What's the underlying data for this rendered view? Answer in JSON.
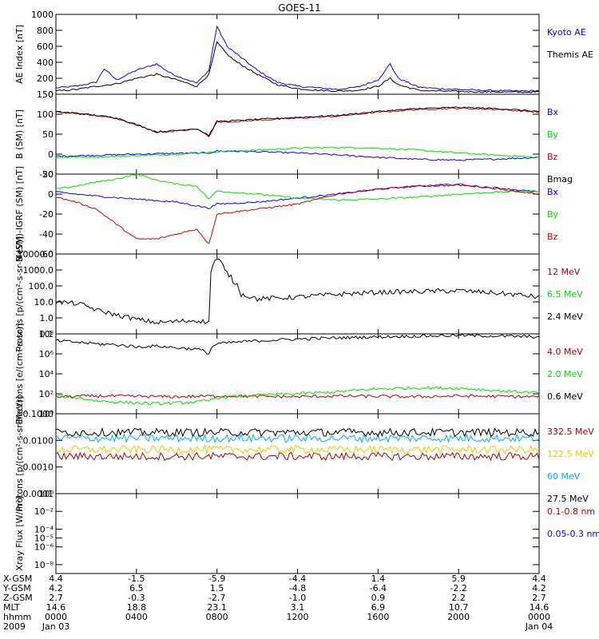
{
  "title": "GOES-11",
  "chart_data": [
    {
      "type": "line",
      "ylabel": "AE Index [nT]",
      "yscale": "linear",
      "ylim": [
        0,
        1000
      ],
      "yticks": [
        {
          "v": 0,
          "label": "0"
        },
        {
          "v": 200,
          "label": "200"
        },
        {
          "v": 400,
          "label": "400"
        },
        {
          "v": 600,
          "label": "600"
        },
        {
          "v": 800,
          "label": "800"
        },
        {
          "v": 1000,
          "label": "1000"
        }
      ],
      "series": [
        {
          "name": "Kyoto AE",
          "color": "#0000ff",
          "x": [
            0,
            1,
            2,
            2.4,
            3,
            4,
            5,
            5.6,
            6,
            7,
            7.6,
            8,
            8.5,
            9,
            10,
            11,
            12,
            13,
            14,
            15,
            16,
            16.6,
            17,
            18,
            19,
            20,
            21,
            22,
            23,
            24
          ],
          "y": [
            80,
            100,
            150,
            320,
            180,
            300,
            380,
            280,
            230,
            140,
            300,
            850,
            600,
            500,
            300,
            150,
            100,
            80,
            60,
            90,
            180,
            380,
            200,
            90,
            70,
            60,
            50,
            45,
            40,
            45
          ]
        },
        {
          "name": "Themis AE",
          "color": "#000000",
          "x": [
            0,
            1,
            2,
            3,
            4,
            5,
            6,
            7,
            7.6,
            8,
            8.5,
            9,
            10,
            11,
            12,
            13,
            14,
            15,
            16,
            16.6,
            17,
            18,
            19,
            20,
            21,
            22,
            23,
            24
          ],
          "y": [
            40,
            60,
            100,
            130,
            200,
            250,
            180,
            100,
            250,
            650,
            500,
            400,
            250,
            120,
            70,
            50,
            40,
            50,
            100,
            200,
            120,
            50,
            40,
            35,
            30,
            30,
            25,
            30
          ]
        }
      ]
    },
    {
      "type": "line",
      "ylabel": "B (SM) [nT]",
      "yscale": "linear",
      "ylim": [
        -50,
        150
      ],
      "yticks": [
        {
          "v": -50,
          "label": "-50"
        },
        {
          "v": 0,
          "label": "0"
        },
        {
          "v": 50,
          "label": "50"
        },
        {
          "v": 100,
          "label": "100"
        },
        {
          "v": 150,
          "label": "150"
        }
      ],
      "series": [
        {
          "name": "Bx",
          "color": "#0000ff",
          "x": [
            0,
            2,
            4,
            6,
            7.6,
            8,
            10,
            12,
            14,
            16,
            18,
            20,
            22,
            24
          ],
          "y": [
            -5,
            -3,
            0,
            2,
            3,
            8,
            6,
            3,
            -2,
            -8,
            -13,
            -15,
            -12,
            -8
          ]
        },
        {
          "name": "By",
          "color": "#00dd00",
          "x": [
            0,
            2,
            4,
            6,
            7.6,
            8,
            10,
            12,
            14,
            16,
            18,
            20,
            22,
            24
          ],
          "y": [
            -8,
            -7,
            -4,
            0,
            4,
            6,
            10,
            15,
            17,
            15,
            10,
            3,
            -3,
            -8
          ]
        },
        {
          "name": "Bz",
          "color": "#cc0000",
          "x": [
            0,
            1,
            2,
            3,
            4,
            5,
            6,
            7,
            7.6,
            8,
            9,
            10,
            12,
            14,
            16,
            18,
            20,
            22,
            24
          ],
          "y": [
            105,
            102,
            96,
            90,
            73,
            55,
            58,
            63,
            45,
            80,
            82,
            85,
            90,
            95,
            105,
            112,
            115,
            112,
            105
          ]
        },
        {
          "name": "Bmag",
          "color": "#000000",
          "x": [
            0,
            1,
            2,
            3,
            4,
            5,
            6,
            7,
            7.6,
            8,
            9,
            10,
            12,
            14,
            16,
            18,
            20,
            22,
            24
          ],
          "y": [
            106,
            103,
            97,
            91,
            74,
            56,
            59,
            64,
            47,
            82,
            84,
            87,
            92,
            97,
            107,
            114,
            117,
            114,
            107
          ]
        }
      ]
    },
    {
      "type": "line",
      "ylabel": "B (SM)-IGRF (SM) [nT]",
      "yscale": "linear",
      "ylim": [
        -60,
        20
      ],
      "yticks": [
        {
          "v": -60,
          "label": "-60"
        },
        {
          "v": -40,
          "label": "-40"
        },
        {
          "v": -20,
          "label": "-20"
        },
        {
          "v": 0,
          "label": "0"
        },
        {
          "v": 20,
          "label": "20"
        }
      ],
      "series": [
        {
          "name": "Bx",
          "color": "#0000ff",
          "x": [
            0,
            2,
            4,
            6,
            7.6,
            8,
            10,
            12,
            14,
            16,
            18,
            20,
            22,
            24
          ],
          "y": [
            2,
            -2,
            -5,
            -8,
            -14,
            -10,
            -8,
            -4,
            0,
            5,
            8,
            9,
            6,
            2
          ]
        },
        {
          "name": "By",
          "color": "#00dd00",
          "x": [
            0,
            1,
            2,
            3,
            4,
            5,
            6,
            7,
            7.6,
            8,
            10,
            12,
            14,
            16,
            18,
            20,
            22,
            24
          ],
          "y": [
            5,
            8,
            12,
            15,
            20,
            14,
            10,
            8,
            -5,
            3,
            0,
            -4,
            -6,
            -5,
            -3,
            0,
            2,
            3
          ]
        },
        {
          "name": "Bz",
          "color": "#cc0000",
          "x": [
            0,
            1,
            2,
            3,
            4,
            5,
            6,
            7,
            7.6,
            8,
            10,
            12,
            14,
            16,
            18,
            20,
            22,
            24
          ],
          "y": [
            -3,
            -8,
            -15,
            -30,
            -45,
            -45,
            -40,
            -35,
            -50,
            -20,
            -15,
            -10,
            0,
            5,
            8,
            10,
            5,
            0
          ]
        }
      ]
    },
    {
      "type": "line",
      "ylabel": "Protons [p/(cm²-s-sr-MeV)]",
      "yscale": "log",
      "ylim": [
        0.1,
        10000
      ],
      "yticks": [
        {
          "v": 0.1,
          "label": "0.1"
        },
        {
          "v": 1,
          "label": "1.0"
        },
        {
          "v": 10,
          "label": "10.0"
        },
        {
          "v": 100,
          "label": "100.0"
        },
        {
          "v": 1000,
          "label": "1000.0"
        },
        {
          "v": 10000,
          "label": "10000.0"
        }
      ],
      "series": [
        {
          "name": "12 MeV",
          "color": "#aa0000",
          "x": [],
          "y": []
        },
        {
          "name": "6.5 MeV",
          "color": "#00dd00",
          "x": [],
          "y": []
        },
        {
          "name": "2.4 MeV",
          "color": "#000000",
          "x": [
            0,
            1,
            2,
            3,
            4,
            5,
            6,
            7,
            7.6,
            7.8,
            8,
            8.4,
            8.8,
            9.2,
            10,
            12,
            14,
            16,
            18,
            20,
            22,
            24
          ],
          "y": [
            10,
            8,
            3,
            1.5,
            0.8,
            0.5,
            0.6,
            0.7,
            0.5,
            2000,
            5000,
            800,
            200,
            30,
            15,
            20,
            30,
            40,
            45,
            50,
            35,
            20
          ]
        }
      ]
    },
    {
      "type": "line",
      "ylabel": "Electrons [e/(cm²-s-sr)]",
      "yscale": "log",
      "ylim": [
        1,
        100000000
      ],
      "yticks": [
        {
          "v": 1,
          "label": "10⁰"
        },
        {
          "v": 100,
          "label": "10²"
        },
        {
          "v": 10000,
          "label": "10⁴"
        },
        {
          "v": 1000000,
          "label": "10⁶"
        },
        {
          "v": 100000000,
          "label": "10⁸"
        }
      ],
      "series": [
        {
          "name": "4.0 MeV",
          "color": "#aa0000",
          "x": [
            0,
            2,
            4,
            6,
            8,
            10,
            12,
            14,
            16,
            18,
            20,
            22,
            24
          ],
          "y": [
            50,
            60,
            55,
            50,
            60,
            55,
            50,
            60,
            55,
            50,
            60,
            55,
            50
          ]
        },
        {
          "name": "2.0 MeV",
          "color": "#00dd00",
          "x": [
            0,
            1,
            2,
            3,
            4,
            5,
            6,
            7,
            7.6,
            8,
            10,
            12,
            14,
            16,
            18,
            20,
            22,
            24
          ],
          "y": [
            60,
            40,
            20,
            15,
            12,
            10,
            12,
            15,
            20,
            40,
            70,
            100,
            150,
            300,
            400,
            350,
            200,
            120
          ]
        },
        {
          "name": "0.6 MeV",
          "color": "#000000",
          "x": [
            0,
            1,
            2,
            3,
            4,
            5,
            6,
            7,
            7.6,
            8,
            10,
            12,
            14,
            16,
            18,
            20,
            22,
            24
          ],
          "y": [
            20000000,
            15000000,
            10000000,
            8000000,
            5000000,
            6000000,
            4000000,
            3000000,
            1000000,
            10000000,
            20000000,
            30000000,
            40000000,
            50000000,
            60000000,
            70000000,
            60000000,
            50000000
          ]
        }
      ]
    },
    {
      "type": "line",
      "ylabel": "Protons [p/(cm²-s-sr-MeV)]",
      "yscale": "log",
      "ylim": [
        0.0001,
        0.1
      ],
      "yticks": [
        {
          "v": 0.0001,
          "label": "0.0001"
        },
        {
          "v": 0.001,
          "label": "0.0010"
        },
        {
          "v": 0.01,
          "label": "0.0100"
        },
        {
          "v": 0.1,
          "label": "0.1000"
        }
      ],
      "series": [
        {
          "name": "332.5 MeV",
          "color": "#aa0000",
          "x": [
            0,
            24
          ],
          "y": [
            0.0025,
            0.0025
          ]
        },
        {
          "name": "122.5 MeV",
          "color": "#e8c800",
          "x": [
            0,
            24
          ],
          "y": [
            0.0045,
            0.0045
          ]
        },
        {
          "name": "60 MeV",
          "color": "#00aaff",
          "x": [
            0,
            24
          ],
          "y": [
            0.012,
            0.012
          ]
        },
        {
          "name": "27.5 MeV",
          "color": "#000000",
          "x": [
            0,
            24
          ],
          "y": [
            0.02,
            0.02
          ]
        }
      ]
    },
    {
      "type": "line",
      "ylabel": "Xray Flux [W/m²]",
      "yscale": "log",
      "ylim": [
        1e-09,
        1
      ],
      "yticks": [
        {
          "v": 1e-08,
          "label": "10⁻⁸"
        },
        {
          "v": 1e-06,
          "label": "10⁻⁶"
        },
        {
          "v": 1e-05,
          "label": "10⁻⁵"
        },
        {
          "v": 0.0001,
          "label": "10⁻⁴"
        },
        {
          "v": 0.01,
          "label": "10⁻²"
        },
        {
          "v": 1,
          "label": "10⁰"
        }
      ],
      "series": [
        {
          "name": "0.1-0.8 nm",
          "color": "#aa0000",
          "x": [],
          "y": []
        },
        {
          "name": "0.05-0.3 nm",
          "color": "#0000ff",
          "x": [],
          "y": []
        }
      ]
    }
  ],
  "x_axis": {
    "xlim": [
      0,
      24
    ],
    "rows": [
      {
        "name": "X-GSM",
        "values": [
          "4.4",
          "-1.5",
          "-5.9",
          "-4.4",
          "1.4",
          "5.9",
          "4.4"
        ]
      },
      {
        "name": "Y-GSM",
        "values": [
          "4.2",
          "6.5",
          "1.5",
          "-4.8",
          "-6.4",
          "-2.2",
          "4.2"
        ]
      },
      {
        "name": "Z-GSM",
        "values": [
          "2.7",
          "-0.3",
          "-2.7",
          "-1.0",
          "0.9",
          "2.2",
          "2.7"
        ]
      },
      {
        "name": "MLT",
        "values": [
          "14.6",
          "18.8",
          "23.1",
          "3.1",
          "6.9",
          "10.7",
          "14.6"
        ]
      },
      {
        "name": "hhmm",
        "values": [
          "0000",
          "0400",
          "0800",
          "1200",
          "1600",
          "2000",
          "0000"
        ]
      },
      {
        "name": "2009",
        "values": [
          "Jan 03",
          "",
          "",
          "",
          "",
          "",
          "Jan 04"
        ]
      }
    ],
    "ticks_hours": [
      0,
      4,
      8,
      12,
      16,
      20,
      24
    ]
  }
}
